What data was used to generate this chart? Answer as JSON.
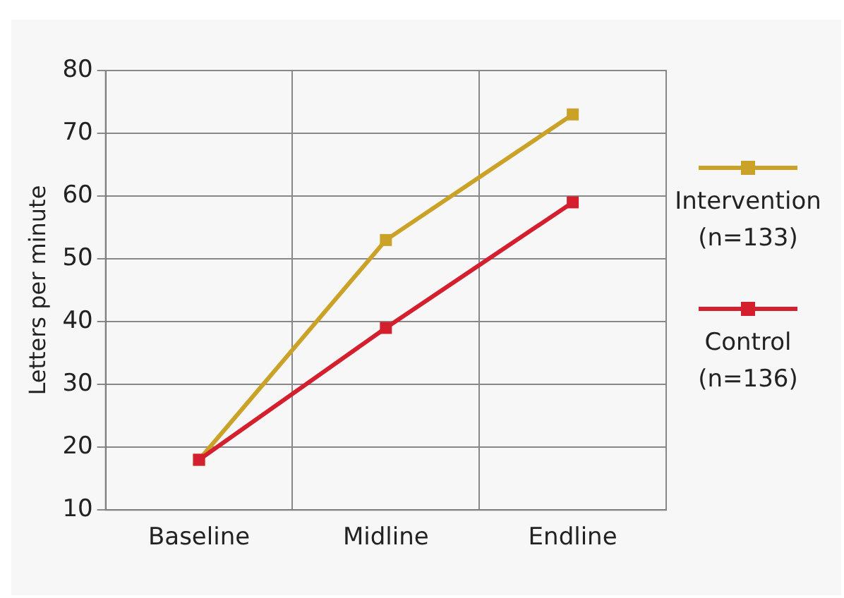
{
  "chart_data": {
    "type": "line",
    "ylabel": "Letters per minute",
    "categories": [
      "Baseline",
      "Midline",
      "Endline"
    ],
    "series": [
      {
        "name": "Intervention (n=133)",
        "color": "#c9a227",
        "values": [
          18,
          53,
          73
        ]
      },
      {
        "name": "Control (n=136)",
        "color": "#d4202e",
        "values": [
          18,
          39,
          59
        ]
      }
    ],
    "ylim": [
      10,
      80
    ],
    "yticks": [
      10,
      20,
      30,
      40,
      50,
      60,
      70,
      80
    ],
    "grid": true,
    "legend": "right",
    "marker": "square",
    "line_style": "solid"
  }
}
